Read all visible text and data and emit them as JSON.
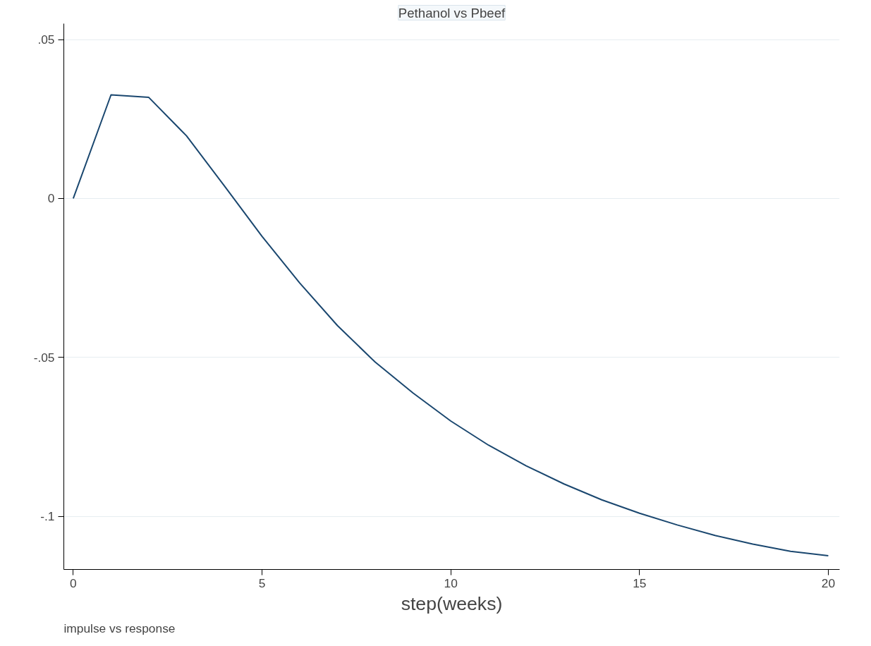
{
  "chart_data": {
    "type": "line",
    "title": "Pethanol vs Pbeef",
    "xlabel": "step(weeks)",
    "annotations": [
      "impulse vs response"
    ],
    "x": [
      0,
      1,
      2,
      3,
      4,
      5,
      6,
      7,
      8,
      9,
      10,
      11,
      12,
      13,
      14,
      15,
      16,
      17,
      18,
      19,
      20
    ],
    "series": [
      {
        "color": "#1a476f",
        "values": [
          0,
          0.0326,
          0.0318,
          0.0197,
          0.004,
          -0.0119,
          -0.0266,
          -0.04,
          -0.0515,
          -0.0612,
          -0.07,
          -0.0776,
          -0.0841,
          -0.0898,
          -0.0948,
          -0.099,
          -0.1027,
          -0.106,
          -0.1087,
          -0.111,
          -0.1124
        ]
      }
    ],
    "xlim": [
      -0.25,
      20.3
    ],
    "ylim": [
      -0.1167,
      0.055
    ],
    "xticks": [
      0,
      5,
      10,
      15,
      20
    ],
    "yticks": [
      {
        "value": 0.05,
        "label": ".05"
      },
      0,
      {
        "value": -0.05,
        "label": "-.05"
      },
      {
        "value": -0.1,
        "label": "-.1"
      }
    ],
    "grid": "y",
    "marker": "none",
    "line_style": "solid"
  }
}
